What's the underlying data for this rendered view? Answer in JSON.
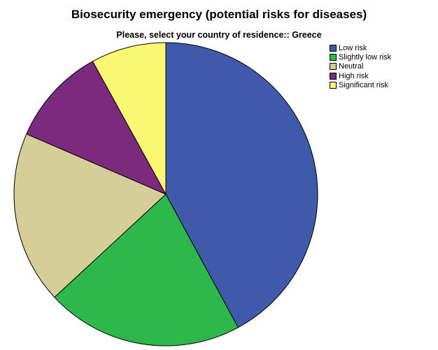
{
  "chart_data": {
    "type": "pie",
    "title": "Biosecurity emergency (potential risks for diseases)",
    "subtitle": "Please, select your country of residence:: Greece",
    "categories": [
      "Low risk",
      "Slightly low risk",
      "Neutral",
      "High risk",
      "Significant risk"
    ],
    "values": [
      42.1,
      21.0,
      18.4,
      10.5,
      8.0
    ],
    "colors": [
      "#3F5AAB",
      "#2EB74A",
      "#D6CE98",
      "#7C2A7D",
      "#FAF775"
    ],
    "start_angle_deg": 0,
    "direction": "clockwise",
    "legend_placement": "top-right"
  }
}
